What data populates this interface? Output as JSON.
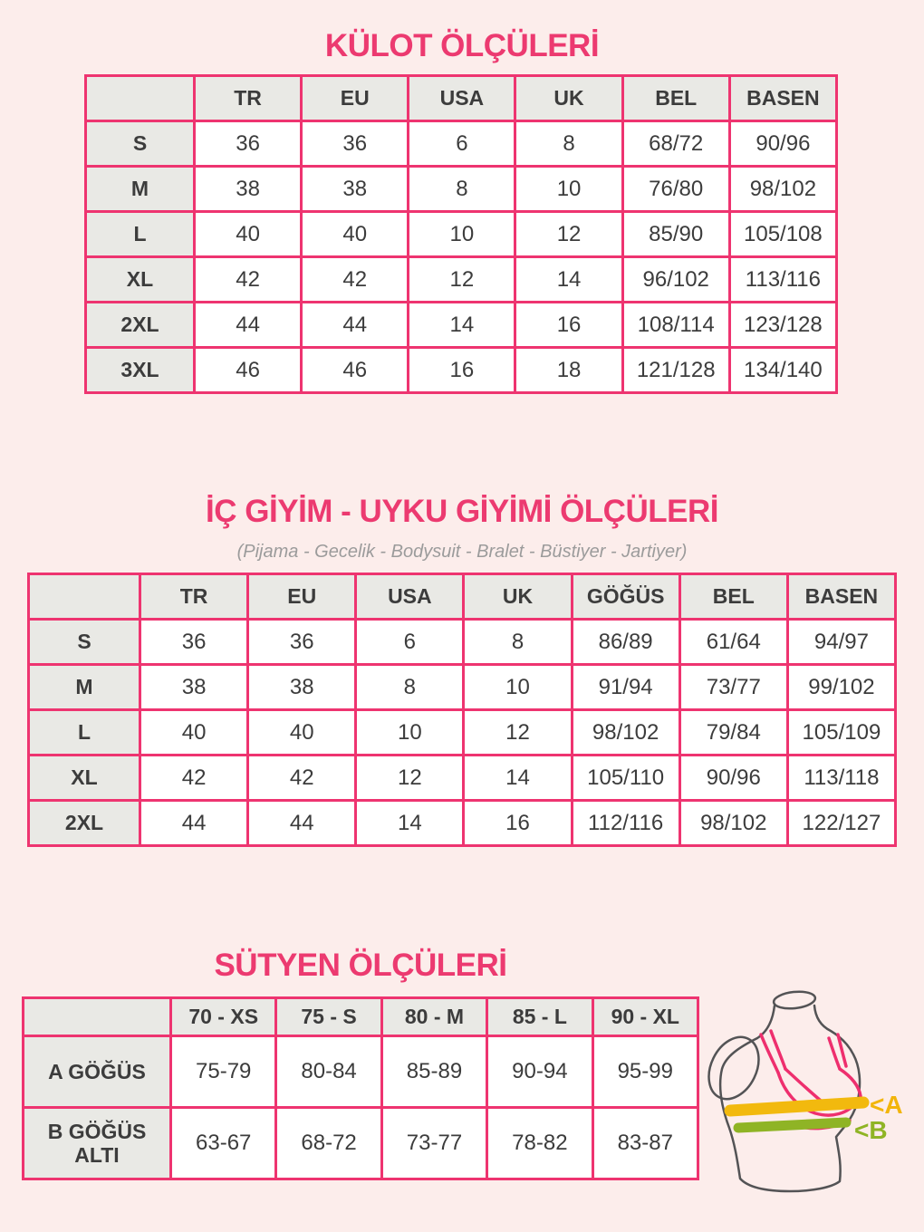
{
  "theme": {
    "background": "#fcedeb",
    "accent_pink": "#ec3a70",
    "table_border_pink": "#ee3470",
    "header_gray": "#e9e9e5",
    "text_dark": "#3c3c3c",
    "subtitle_gray": "#9b9b9b",
    "band_a_yellow": "#f2b90e",
    "band_b_green": "#8fb425",
    "bra_line_pink": "#ee2f6e",
    "mannequin_outline_gray": "#535355"
  },
  "sections": {
    "panties": {
      "title": "KÜLOT ÖLÇÜLERİ",
      "table": {
        "columns": [
          "",
          "TR",
          "EU",
          "USA",
          "UK",
          "BEL",
          "BASEN"
        ],
        "rows": [
          {
            "label": "S",
            "values": [
              "36",
              "36",
              "6",
              "8",
              "68/72",
              "90/96"
            ]
          },
          {
            "label": "M",
            "values": [
              "38",
              "38",
              "8",
              "10",
              "76/80",
              "98/102"
            ]
          },
          {
            "label": "L",
            "values": [
              "40",
              "40",
              "10",
              "12",
              "85/90",
              "105/108"
            ]
          },
          {
            "label": "XL",
            "values": [
              "42",
              "42",
              "12",
              "14",
              "96/102",
              "113/116"
            ]
          },
          {
            "label": "2XL",
            "values": [
              "44",
              "44",
              "14",
              "16",
              "108/114",
              "123/128"
            ]
          },
          {
            "label": "3XL",
            "values": [
              "46",
              "46",
              "16",
              "18",
              "121/128",
              "134/140"
            ]
          }
        ]
      }
    },
    "underwear_sleepwear": {
      "title": "İÇ GİYİM - UYKU GİYİMİ ÖLÇÜLERİ",
      "subtitle": "(Pijama - Gecelik - Bodysuit - Bralet - Büstiyer - Jartiyer)",
      "table": {
        "columns": [
          "",
          "TR",
          "EU",
          "USA",
          "UK",
          "GÖĞÜS",
          "BEL",
          "BASEN"
        ],
        "rows": [
          {
            "label": "S",
            "values": [
              "36",
              "36",
              "6",
              "8",
              "86/89",
              "61/64",
              "94/97"
            ]
          },
          {
            "label": "M",
            "values": [
              "38",
              "38",
              "8",
              "10",
              "91/94",
              "73/77",
              "99/102"
            ]
          },
          {
            "label": "L",
            "values": [
              "40",
              "40",
              "10",
              "12",
              "98/102",
              "79/84",
              "105/109"
            ]
          },
          {
            "label": "XL",
            "values": [
              "42",
              "42",
              "12",
              "14",
              "105/110",
              "90/96",
              "113/118"
            ]
          },
          {
            "label": "2XL",
            "values": [
              "44",
              "44",
              "14",
              "16",
              "112/116",
              "98/102",
              "122/127"
            ]
          }
        ]
      }
    },
    "bras": {
      "title": "SÜTYEN ÖLÇÜLERİ",
      "table": {
        "columns": [
          "",
          "70 - XS",
          "75 - S",
          "80 - M",
          "85 - L",
          "90 - XL"
        ],
        "rows": [
          {
            "label": "A GÖĞÜS",
            "values": [
              "75-79",
              "80-84",
              "85-89",
              "90-94",
              "95-99"
            ]
          },
          {
            "label": "B GÖĞÜS ALTI",
            "values": [
              "63-67",
              "68-72",
              "73-77",
              "78-82",
              "83-87"
            ]
          }
        ]
      },
      "diagram": {
        "label_a": "<A",
        "label_b": "<B"
      }
    }
  }
}
